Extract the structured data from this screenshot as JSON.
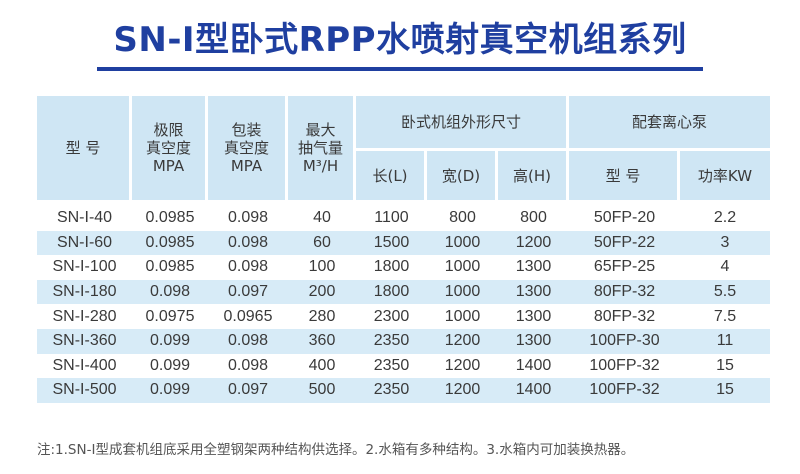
{
  "title": "SN-I型卧式RPP水喷射真空机组系列",
  "headers": {
    "model": "型 号",
    "limit_vacuum": "极限\n真空度\nMPA",
    "pack_vacuum": "包装\n真空度\nMPA",
    "max_flow": "最大\n抽气量\nM³/H",
    "dimensions": "卧式机组外形尺寸",
    "length": "长(L)",
    "width": "宽(D)",
    "height": "高(H)",
    "pump": "配套离心泵",
    "pump_model": "型 号",
    "power": "功率KW"
  },
  "rows": [
    [
      "SN-I-40",
      "0.0985",
      "0.098",
      "40",
      "1100",
      "800",
      "800",
      "50FP-20",
      "2.2"
    ],
    [
      "SN-I-60",
      "0.0985",
      "0.098",
      "60",
      "1500",
      "1000",
      "1200",
      "50FP-22",
      "3"
    ],
    [
      "SN-I-100",
      "0.0985",
      "0.098",
      "100",
      "1800",
      "1000",
      "1300",
      "65FP-25",
      "4"
    ],
    [
      "SN-I-180",
      "0.098",
      "0.097",
      "200",
      "1800",
      "1000",
      "1300",
      "80FP-32",
      "5.5"
    ],
    [
      "SN-I-280",
      "0.0975",
      "0.0965",
      "280",
      "2300",
      "1000",
      "1300",
      "80FP-32",
      "7.5"
    ],
    [
      "SN-I-360",
      "0.099",
      "0.098",
      "360",
      "2350",
      "1200",
      "1300",
      "100FP-30",
      "11"
    ],
    [
      "SN-I-400",
      "0.099",
      "0.098",
      "400",
      "2350",
      "1200",
      "1400",
      "100FP-32",
      "15"
    ],
    [
      "SN-I-500",
      "0.099",
      "0.097",
      "500",
      "2350",
      "1200",
      "1400",
      "100FP-32",
      "15"
    ]
  ],
  "note": "注:1.SN-I型成套机组底采用全塑钢架两种结构供选择。2.水箱有多种结构。3.水箱内可加装换热器。"
}
